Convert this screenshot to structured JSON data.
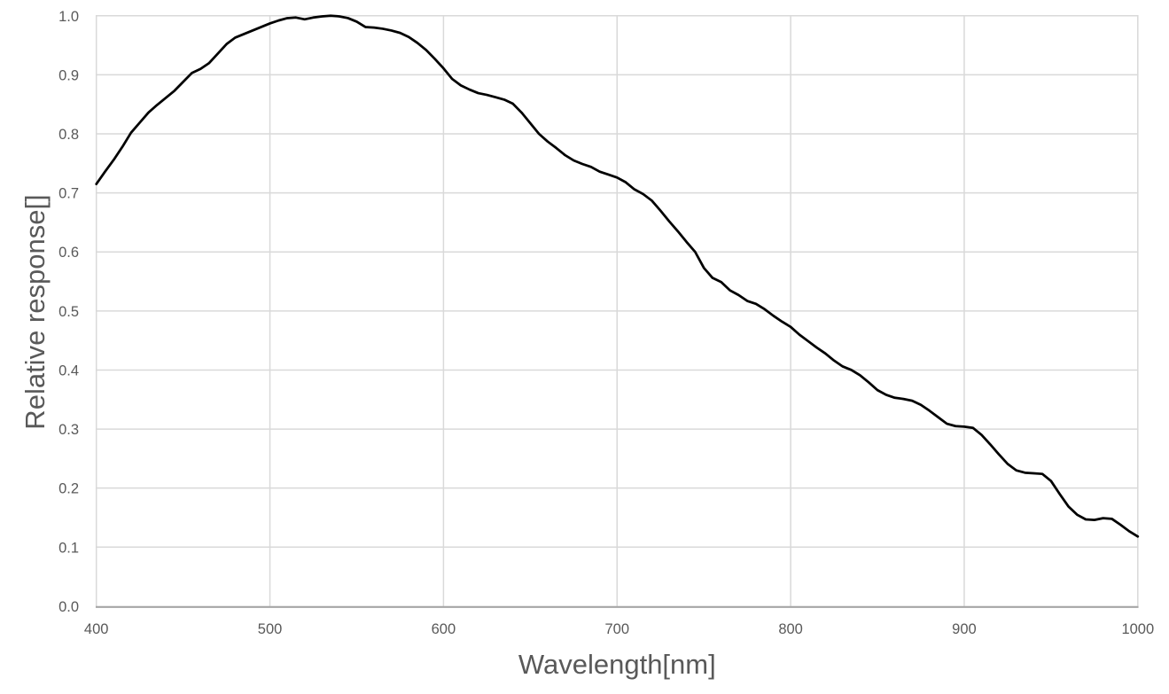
{
  "chart_data": {
    "type": "line",
    "title": "",
    "xlabel": "Wavelength[nm]",
    "ylabel": "Relative response[]",
    "xlim": [
      400,
      1000
    ],
    "ylim": [
      0.0,
      1.0
    ],
    "x_tick_labels": [
      "400",
      "500",
      "600",
      "700",
      "800",
      "900",
      "1000"
    ],
    "x_ticks": [
      400,
      500,
      600,
      700,
      800,
      900,
      1000
    ],
    "y_tick_labels": [
      "0.0",
      "0.1",
      "0.2",
      "0.3",
      "0.4",
      "0.5",
      "0.6",
      "0.7",
      "0.8",
      "0.9",
      "1.0"
    ],
    "y_ticks": [
      0.0,
      0.1,
      0.2,
      0.3,
      0.4,
      0.5,
      0.6,
      0.7,
      0.8,
      0.9,
      1.0
    ],
    "grid": "both",
    "legend": "none",
    "series": [
      {
        "name": "relative-response",
        "x": [
          400,
          405,
          410,
          415,
          420,
          425,
          430,
          435,
          440,
          445,
          450,
          455,
          460,
          465,
          470,
          475,
          480,
          485,
          490,
          495,
          500,
          505,
          510,
          515,
          520,
          525,
          530,
          535,
          540,
          545,
          550,
          555,
          560,
          565,
          570,
          575,
          580,
          585,
          590,
          595,
          600,
          605,
          610,
          615,
          620,
          625,
          630,
          635,
          640,
          645,
          650,
          655,
          660,
          665,
          670,
          675,
          680,
          685,
          690,
          695,
          700,
          705,
          710,
          715,
          720,
          725,
          730,
          735,
          740,
          745,
          750,
          755,
          760,
          765,
          770,
          775,
          780,
          785,
          790,
          795,
          800,
          805,
          810,
          815,
          820,
          825,
          830,
          835,
          840,
          845,
          850,
          855,
          860,
          865,
          870,
          875,
          880,
          885,
          890,
          895,
          900,
          905,
          910,
          915,
          920,
          925,
          930,
          935,
          940,
          945,
          950,
          955,
          960,
          965,
          970,
          975,
          980,
          985,
          990,
          995,
          1000
        ],
        "y": [
          0.715,
          0.736,
          0.756,
          0.778,
          0.802,
          0.819,
          0.836,
          0.849,
          0.861,
          0.873,
          0.888,
          0.903,
          0.91,
          0.92,
          0.936,
          0.952,
          0.963,
          0.969,
          0.975,
          0.981,
          0.987,
          0.992,
          0.996,
          0.997,
          0.994,
          0.997,
          0.999,
          1.0,
          0.999,
          0.996,
          0.99,
          0.981,
          0.98,
          0.978,
          0.975,
          0.971,
          0.964,
          0.954,
          0.942,
          0.927,
          0.911,
          0.893,
          0.882,
          0.875,
          0.869,
          0.866,
          0.862,
          0.858,
          0.851,
          0.836,
          0.818,
          0.8,
          0.787,
          0.776,
          0.764,
          0.755,
          0.749,
          0.744,
          0.736,
          0.731,
          0.726,
          0.718,
          0.706,
          0.698,
          0.687,
          0.67,
          0.652,
          0.635,
          0.617,
          0.6,
          0.573,
          0.556,
          0.549,
          0.535,
          0.527,
          0.517,
          0.512,
          0.503,
          0.492,
          0.482,
          0.473,
          0.46,
          0.449,
          0.438,
          0.428,
          0.416,
          0.406,
          0.4,
          0.391,
          0.379,
          0.366,
          0.358,
          0.353,
          0.351,
          0.348,
          0.341,
          0.331,
          0.32,
          0.309,
          0.305,
          0.304,
          0.302,
          0.29,
          0.274,
          0.257,
          0.241,
          0.23,
          0.226,
          0.225,
          0.224,
          0.212,
          0.19,
          0.169,
          0.155,
          0.147,
          0.146,
          0.149,
          0.148,
          0.138,
          0.127,
          0.118
        ]
      }
    ],
    "colors": {
      "line": "#000000",
      "gridline": "#d9d9d9",
      "axis_line": "#a6a6a6",
      "tick_label": "#595959",
      "axis_title": "#595959",
      "background": "#ffffff"
    }
  }
}
